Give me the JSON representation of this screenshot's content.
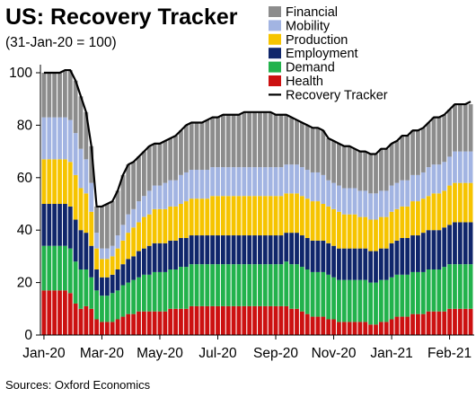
{
  "chart_data": {
    "type": "bar",
    "subtype": "stacked-bar-with-line",
    "title": "US: Recovery Tracker",
    "subtitle": "(31-Jan-20 = 100)",
    "source": "Sources: Oxford Economics",
    "ylim": [
      0,
      105
    ],
    "yticks": [
      "0",
      "20",
      "40",
      "60",
      "80",
      "100"
    ],
    "xtick_labels": [
      "Jan-20",
      "Mar-20",
      "May-20",
      "Jul-20",
      "Sep-20",
      "Nov-20",
      "Jan-21",
      "Feb-21"
    ],
    "grid": false,
    "legend_position": "top-right",
    "legend": [
      {
        "name": "Financial",
        "color": "#8c8c8c"
      },
      {
        "name": "Mobility",
        "color": "#a2b4e2"
      },
      {
        "name": "Production",
        "color": "#f6c400"
      },
      {
        "name": "Employment",
        "color": "#10266b"
      },
      {
        "name": "Demand",
        "color": "#22b24c"
      },
      {
        "name": "Health",
        "color": "#cc1111"
      },
      {
        "name": "Recovery Tracker",
        "color": "#000000"
      }
    ],
    "series": [
      {
        "name": "Health",
        "color": "#cc1111",
        "values": [
          17,
          17,
          17,
          17,
          17,
          16,
          12,
          10,
          11,
          10,
          6,
          5,
          5,
          5,
          6,
          7,
          8,
          8,
          9,
          9,
          9,
          9,
          9,
          9,
          10,
          10,
          10,
          10,
          11,
          11,
          11,
          11,
          11,
          11,
          11,
          11,
          11,
          11,
          11,
          11,
          11,
          11,
          11,
          11,
          11,
          11,
          11,
          10,
          10,
          9,
          8,
          7,
          7,
          7,
          6,
          6,
          5,
          5,
          5,
          5,
          5,
          5,
          4,
          4,
          5,
          5,
          6,
          7,
          7,
          7,
          8,
          8,
          8,
          9,
          9,
          9,
          9,
          10,
          10,
          10,
          10,
          10
        ]
      },
      {
        "name": "Demand",
        "color": "#22b24c",
        "values": [
          17,
          17,
          17,
          17,
          17,
          17,
          16,
          15,
          14,
          12,
          11,
          10,
          10,
          11,
          11,
          12,
          12,
          13,
          13,
          14,
          14,
          15,
          15,
          15,
          15,
          15,
          16,
          16,
          16,
          16,
          16,
          16,
          16,
          16,
          16,
          16,
          16,
          16,
          16,
          16,
          16,
          16,
          16,
          16,
          16,
          16,
          17,
          17,
          17,
          17,
          17,
          17,
          17,
          17,
          17,
          16,
          16,
          16,
          16,
          16,
          16,
          16,
          16,
          16,
          16,
          16,
          16,
          16,
          16,
          16,
          16,
          16,
          16,
          16,
          16,
          16,
          17,
          17,
          17,
          17,
          17,
          17
        ]
      },
      {
        "name": "Employment",
        "color": "#10266b",
        "values": [
          16,
          16,
          16,
          16,
          16,
          16,
          16,
          15,
          14,
          12,
          8,
          7,
          7,
          7,
          8,
          8,
          9,
          9,
          10,
          10,
          11,
          11,
          11,
          11,
          11,
          11,
          11,
          11,
          11,
          11,
          11,
          11,
          11,
          11,
          11,
          11,
          11,
          11,
          11,
          11,
          11,
          11,
          11,
          11,
          11,
          11,
          11,
          12,
          12,
          12,
          12,
          12,
          12,
          12,
          12,
          12,
          12,
          12,
          12,
          12,
          12,
          12,
          12,
          12,
          12,
          12,
          13,
          13,
          14,
          14,
          14,
          14,
          15,
          15,
          15,
          15,
          15,
          15,
          16,
          16,
          16,
          16
        ]
      },
      {
        "name": "Production",
        "color": "#f6c400",
        "values": [
          17,
          17,
          17,
          17,
          17,
          17,
          17,
          16,
          15,
          13,
          8,
          7,
          7,
          7,
          8,
          9,
          10,
          11,
          11,
          12,
          12,
          13,
          13,
          13,
          13,
          13,
          13,
          14,
          14,
          14,
          14,
          14,
          15,
          15,
          15,
          15,
          15,
          15,
          15,
          15,
          15,
          15,
          15,
          15,
          15,
          15,
          15,
          15,
          15,
          15,
          15,
          15,
          15,
          14,
          14,
          14,
          14,
          13,
          13,
          13,
          12,
          12,
          12,
          12,
          12,
          12,
          12,
          12,
          12,
          12,
          13,
          13,
          13,
          13,
          14,
          14,
          14,
          15,
          15,
          15,
          15,
          15
        ]
      },
      {
        "name": "Mobility",
        "color": "#a2b4e2",
        "values": [
          16,
          16,
          16,
          16,
          16,
          16,
          16,
          15,
          13,
          11,
          6,
          4,
          4,
          4,
          5,
          6,
          7,
          7,
          8,
          8,
          9,
          9,
          9,
          10,
          10,
          10,
          11,
          11,
          11,
          11,
          11,
          11,
          11,
          11,
          11,
          11,
          11,
          11,
          11,
          11,
          11,
          11,
          11,
          11,
          11,
          11,
          11,
          11,
          11,
          11,
          11,
          11,
          11,
          11,
          10,
          10,
          10,
          10,
          10,
          10,
          10,
          10,
          10,
          10,
          10,
          10,
          10,
          10,
          10,
          10,
          10,
          10,
          10,
          11,
          11,
          11,
          11,
          11,
          12,
          12,
          12,
          12
        ]
      },
      {
        "name": "Financial",
        "color": "#8c8c8c",
        "values": [
          17,
          17,
          17,
          17,
          18,
          19,
          20,
          20,
          18,
          14,
          10,
          16,
          17,
          17,
          17,
          19,
          19,
          18,
          17,
          17,
          17,
          16,
          16,
          16,
          16,
          17,
          17,
          18,
          18,
          18,
          18,
          19,
          19,
          19,
          20,
          20,
          20,
          20,
          21,
          21,
          21,
          21,
          21,
          21,
          20,
          20,
          19,
          18,
          17,
          17,
          17,
          17,
          17,
          17,
          16,
          16,
          16,
          16,
          16,
          15,
          15,
          15,
          15,
          15,
          16,
          16,
          16,
          16,
          17,
          17,
          17,
          17,
          17,
          17,
          18,
          18,
          18,
          18,
          18,
          18,
          18,
          18
        ]
      }
    ],
    "line": {
      "name": "Recovery Tracker",
      "color": "#000000",
      "values": [
        100,
        100,
        100,
        100,
        101,
        101,
        97,
        91,
        85,
        72,
        49,
        49,
        50,
        51,
        55,
        61,
        65,
        66,
        68,
        70,
        72,
        73,
        73,
        74,
        75,
        76,
        78,
        80,
        81,
        81,
        81,
        82,
        83,
        83,
        84,
        84,
        84,
        84,
        85,
        85,
        85,
        85,
        85,
        85,
        84,
        84,
        84,
        83,
        82,
        81,
        80,
        79,
        79,
        78,
        75,
        74,
        73,
        72,
        72,
        71,
        70,
        70,
        69,
        69,
        71,
        71,
        73,
        74,
        76,
        76,
        78,
        78,
        79,
        81,
        83,
        83,
        84,
        86,
        88,
        88,
        88,
        89
      ]
    }
  }
}
